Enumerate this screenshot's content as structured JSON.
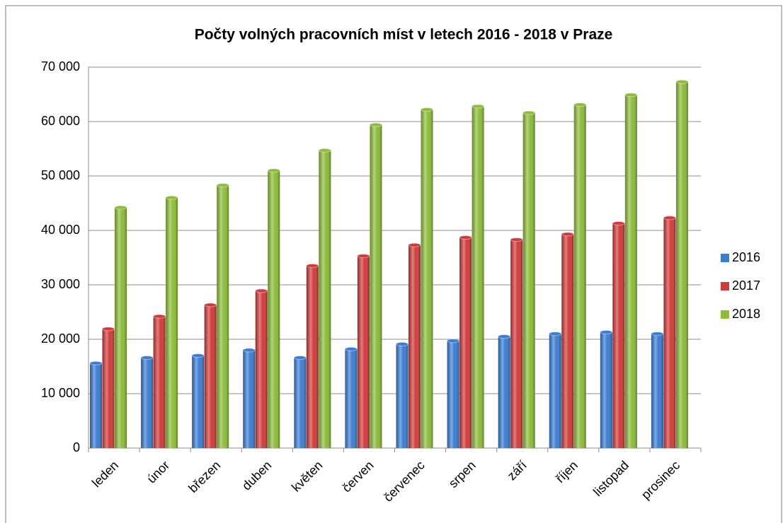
{
  "chart_data": {
    "type": "bar",
    "title": "Počty volných pracovních  míst v letech 2016 - 2018 v Praze",
    "categories": [
      "leden",
      "únor",
      "březen",
      "duben",
      "květen",
      "červen",
      "červenec",
      "srpen",
      "září",
      "říjen",
      "listopad",
      "prosinec"
    ],
    "series": [
      {
        "name": "2016",
        "color": "#3b7dd3",
        "values": [
          15600,
          16600,
          17000,
          18000,
          16600,
          18200,
          19100,
          19700,
          20500,
          21000,
          21300,
          21000
        ]
      },
      {
        "name": "2017",
        "color": "#d23a3a",
        "values": [
          21900,
          24200,
          26300,
          28900,
          33500,
          35300,
          37300,
          38700,
          38300,
          39300,
          41300,
          42300
        ]
      },
      {
        "name": "2018",
        "color": "#8dbd3a",
        "values": [
          44200,
          46000,
          48300,
          51000,
          54700,
          59400,
          62200,
          62800,
          61600,
          63100,
          64900,
          67300
        ]
      }
    ],
    "ylim": [
      0,
      70000
    ],
    "yticks": [
      0,
      {
        "value": 10000,
        "label": "10 000"
      },
      {
        "value": 20000,
        "label": "20 000"
      },
      {
        "value": 30000,
        "label": "30 000"
      },
      {
        "value": 40000,
        "label": "40 000"
      },
      {
        "value": 50000,
        "label": "50 000"
      },
      {
        "value": 60000,
        "label": "60 000"
      },
      {
        "value": 70000,
        "label": "70 000"
      }
    ],
    "grid": true,
    "legend": "right"
  }
}
